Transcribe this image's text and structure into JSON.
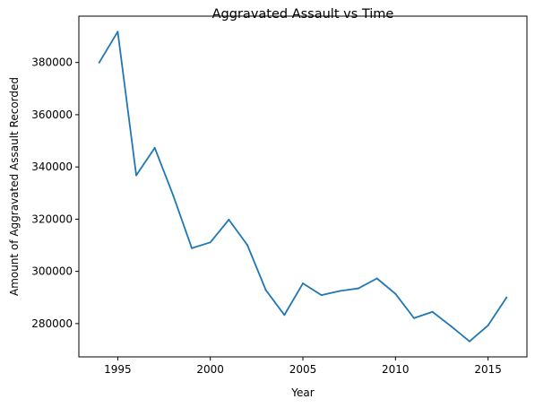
{
  "chart_data": {
    "type": "line",
    "title": "Aggravated Assault vs Time",
    "xlabel": "Year",
    "ylabel": "Amount of Aggravated Assault Recorded",
    "x": [
      1994,
      1995,
      1996,
      1997,
      1998,
      1999,
      2000,
      2001,
      2002,
      2003,
      2004,
      2005,
      2006,
      2007,
      2008,
      2009,
      2010,
      2011,
      2012,
      2013,
      2014,
      2015,
      2016
    ],
    "series": [
      {
        "values": [
          380000,
          391800,
          336800,
          347300,
          329000,
          308900,
          311100,
          319800,
          310100,
          292800,
          283300,
          295400,
          290900,
          292500,
          293500,
          297300,
          291400,
          282100,
          284500,
          279000,
          273200,
          279300,
          290000
        ],
        "color": "#1f77b4"
      }
    ],
    "xlim": [
      1992.9,
      2017.1
    ],
    "ylim": [
      267250,
      397750
    ],
    "xticks": [
      1995,
      2000,
      2005,
      2010,
      2015
    ],
    "yticks": [
      280000,
      300000,
      320000,
      340000,
      360000,
      380000
    ],
    "xtick_labels": [
      "1995",
      "2000",
      "2005",
      "2010",
      "2015"
    ],
    "ytick_labels": [
      "280000",
      "300000",
      "320000",
      "340000",
      "360000",
      "380000"
    ],
    "grid": false,
    "legend": "none"
  }
}
